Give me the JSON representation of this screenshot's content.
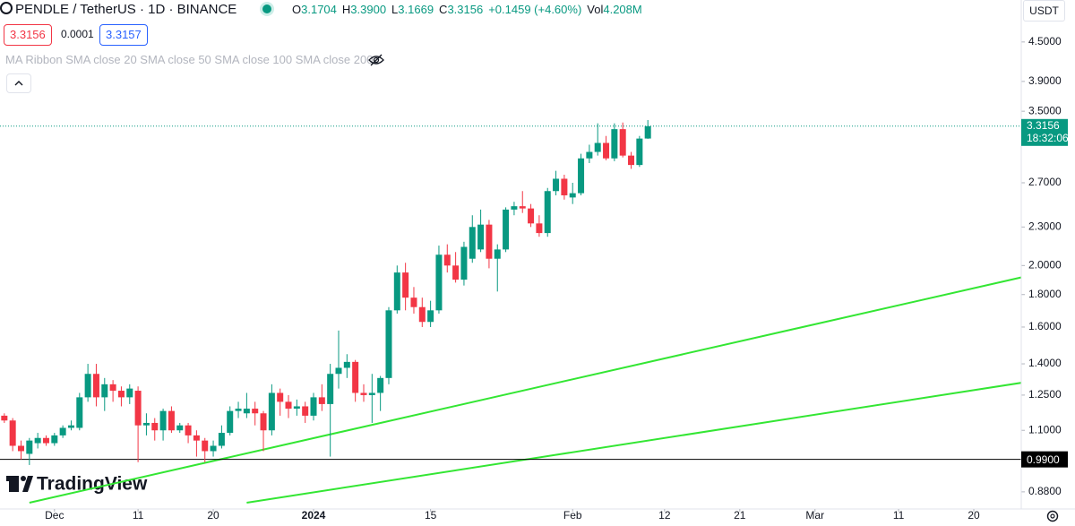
{
  "header": {
    "symbol": "PENDLE / TetherUS · 1D · BINANCE",
    "ohlc": [
      {
        "key": "O",
        "value": "3.1704"
      },
      {
        "key": "H",
        "value": "3.3900"
      },
      {
        "key": "L",
        "value": "3.1669"
      },
      {
        "key": "C",
        "value": "3.3156"
      }
    ],
    "change": "+0.1459 (+4.60%)",
    "volume_key": "Vol",
    "volume": "4.208M",
    "bid": "3.3156",
    "spread": "0.0001",
    "ask": "3.3157",
    "indicator": "MA Ribbon SMA close 20 SMA close 50 SMA close 100 SMA close 200",
    "currency": "USDT",
    "logo": "TradingView"
  },
  "chart_data": {
    "type": "candlestick",
    "log_scale": true,
    "grid": false,
    "up_color": "#089981",
    "down_color": "#f23645",
    "x": [
      "2023-11-25",
      "2023-11-26",
      "2023-11-27",
      "2023-11-28",
      "2023-11-29",
      "2023-11-30",
      "2023-12-01",
      "2023-12-02",
      "2023-12-03",
      "2023-12-04",
      "2023-12-05",
      "2023-12-06",
      "2023-12-07",
      "2023-12-08",
      "2023-12-09",
      "2023-12-10",
      "2023-12-11",
      "2023-12-12",
      "2023-12-13",
      "2023-12-14",
      "2023-12-15",
      "2023-12-16",
      "2023-12-17",
      "2023-12-18",
      "2023-12-19",
      "2023-12-20",
      "2023-12-21",
      "2023-12-22",
      "2023-12-23",
      "2023-12-24",
      "2023-12-25",
      "2023-12-26",
      "2023-12-27",
      "2023-12-28",
      "2023-12-29",
      "2023-12-30",
      "2023-12-31",
      "2024-01-01",
      "2024-01-02",
      "2024-01-03",
      "2024-01-04",
      "2024-01-05",
      "2024-01-06",
      "2024-01-07",
      "2024-01-08",
      "2024-01-09",
      "2024-01-10",
      "2024-01-11",
      "2024-01-12",
      "2024-01-13",
      "2024-01-14",
      "2024-01-15",
      "2024-01-16",
      "2024-01-17",
      "2024-01-18",
      "2024-01-19",
      "2024-01-20",
      "2024-01-21",
      "2024-01-22",
      "2024-01-23",
      "2024-01-24",
      "2024-01-25",
      "2024-01-26",
      "2024-01-27",
      "2024-01-28",
      "2024-01-29",
      "2024-01-30",
      "2024-01-31",
      "2024-02-01",
      "2024-02-02",
      "2024-02-03",
      "2024-02-04",
      "2024-02-05",
      "2024-02-06",
      "2024-02-07",
      "2024-02-08",
      "2024-02-09",
      "2024-02-10"
    ],
    "open": [
      1.16,
      1.14,
      1.04,
      1.01,
      1.05,
      1.07,
      1.05,
      1.08,
      1.11,
      1.11,
      1.24,
      1.35,
      1.24,
      1.3,
      1.27,
      1.24,
      1.27,
      1.12,
      1.13,
      1.1,
      1.18,
      1.1,
      1.12,
      1.08,
      1.06,
      1.02,
      1.04,
      1.09,
      1.18,
      1.17,
      1.19,
      1.17,
      1.1,
      1.26,
      1.22,
      1.19,
      1.2,
      1.16,
      1.24,
      1.21,
      1.35,
      1.38,
      1.41,
      1.26,
      1.25,
      1.26,
      1.33,
      1.7,
      1.95,
      1.78,
      1.72,
      1.63,
      1.7,
      2.08,
      2.0,
      1.9,
      2.05,
      2.12,
      2.32,
      2.05,
      2.12,
      2.45,
      2.48,
      2.46,
      2.33,
      2.25,
      2.62,
      2.74,
      2.56,
      2.6,
      2.95,
      3.02,
      3.12,
      2.95,
      3.28,
      2.98,
      2.88,
      3.1704
    ],
    "high": [
      1.17,
      1.15,
      1.06,
      1.07,
      1.09,
      1.08,
      1.09,
      1.12,
      1.14,
      1.26,
      1.4,
      1.4,
      1.33,
      1.32,
      1.29,
      1.3,
      1.29,
      1.17,
      1.15,
      1.19,
      1.2,
      1.13,
      1.13,
      1.1,
      1.07,
      1.06,
      1.12,
      1.2,
      1.22,
      1.26,
      1.22,
      1.18,
      1.3,
      1.28,
      1.25,
      1.23,
      1.22,
      1.26,
      1.3,
      1.4,
      1.58,
      1.45,
      1.42,
      1.3,
      1.35,
      1.34,
      1.72,
      2.0,
      2.02,
      1.85,
      1.78,
      1.76,
      2.15,
      2.16,
      2.1,
      2.18,
      2.4,
      2.45,
      2.36,
      2.16,
      2.47,
      2.52,
      2.62,
      2.5,
      2.4,
      2.65,
      2.82,
      2.78,
      2.7,
      3.0,
      3.1,
      3.35,
      3.2,
      3.35,
      3.36,
      3.02,
      3.2,
      3.39
    ],
    "low": [
      1.13,
      1.02,
      0.99,
      0.97,
      1.03,
      1.04,
      1.04,
      1.07,
      1.1,
      1.1,
      1.22,
      1.2,
      1.18,
      1.22,
      1.2,
      1.21,
      0.98,
      1.08,
      1.06,
      1.06,
      1.09,
      1.09,
      1.05,
      1.0,
      0.98,
      1.0,
      1.03,
      1.08,
      1.15,
      1.15,
      1.12,
      1.02,
      1.08,
      1.16,
      1.15,
      1.16,
      1.13,
      1.14,
      1.18,
      1.0,
      1.28,
      1.33,
      1.22,
      1.22,
      1.13,
      1.18,
      1.3,
      1.68,
      1.7,
      1.68,
      1.6,
      1.6,
      1.68,
      1.95,
      1.88,
      1.86,
      2.02,
      2.1,
      1.98,
      1.82,
      2.1,
      2.4,
      2.42,
      2.3,
      2.22,
      2.22,
      2.58,
      2.54,
      2.5,
      2.58,
      2.9,
      2.98,
      2.93,
      2.92,
      2.96,
      2.84,
      2.86,
      3.1669
    ],
    "close": [
      1.14,
      1.04,
      1.02,
      1.06,
      1.07,
      1.05,
      1.08,
      1.11,
      1.12,
      1.24,
      1.35,
      1.24,
      1.3,
      1.27,
      1.24,
      1.28,
      1.12,
      1.13,
      1.1,
      1.18,
      1.1,
      1.12,
      1.08,
      1.06,
      1.02,
      1.04,
      1.09,
      1.18,
      1.19,
      1.19,
      1.17,
      1.1,
      1.26,
      1.22,
      1.19,
      1.2,
      1.16,
      1.24,
      1.21,
      1.35,
      1.38,
      1.41,
      1.26,
      1.25,
      1.26,
      1.33,
      1.7,
      1.95,
      1.78,
      1.72,
      1.63,
      1.7,
      2.08,
      2.0,
      1.9,
      2.14,
      2.3,
      2.32,
      2.05,
      2.12,
      2.45,
      2.48,
      2.46,
      2.33,
      2.25,
      2.62,
      2.74,
      2.58,
      2.6,
      2.95,
      3.02,
      3.12,
      2.95,
      3.28,
      2.98,
      2.88,
      3.17,
      3.3156
    ],
    "xlim": [
      "2023-11-24",
      "2024-03-26"
    ],
    "xticks": [
      {
        "value": "2023-12-01",
        "label": "Dec"
      },
      {
        "value": "2023-12-11",
        "label": "11"
      },
      {
        "value": "2023-12-20",
        "label": "20"
      },
      {
        "value": "2024-01-01",
        "label": "2024"
      },
      {
        "value": "2024-01-15",
        "label": "15"
      },
      {
        "value": "2024-02-01",
        "label": "Feb"
      },
      {
        "value": "2024-02-12",
        "label": "12"
      },
      {
        "value": "2024-02-21",
        "label": "21"
      },
      {
        "value": "2024-03-01",
        "label": "Mar"
      },
      {
        "value": "2024-03-11",
        "label": "11"
      },
      {
        "value": "2024-03-20",
        "label": "20"
      }
    ],
    "ylim": [
      0.827,
      5.24
    ],
    "yticks": [
      {
        "value": 4.5,
        "label": "4.5000"
      },
      {
        "value": 3.9,
        "label": "3.9000"
      },
      {
        "value": 3.5,
        "label": "3.5000"
      },
      {
        "value": 2.7,
        "label": "2.7000"
      },
      {
        "value": 2.3,
        "label": "2.3000"
      },
      {
        "value": 2.0,
        "label": "2.0000"
      },
      {
        "value": 1.8,
        "label": "1.8000"
      },
      {
        "value": 1.6,
        "label": "1.6000"
      },
      {
        "value": 1.4,
        "label": "1.4000"
      },
      {
        "value": 1.25,
        "label": "1.2500"
      },
      {
        "value": 1.1,
        "label": "1.1000"
      },
      {
        "value": 0.88,
        "label": "0.8800"
      }
    ],
    "trendlines": [
      {
        "start": [
          "2023-11-28",
          0.846
        ],
        "end": [
          "2024-03-26",
          1.92
        ],
        "color": "#33e633"
      },
      {
        "start": [
          "2023-12-24",
          0.846
        ],
        "end": [
          "2024-03-26",
          1.309
        ],
        "color": "#33e633"
      }
    ],
    "hline": {
      "value": 0.99,
      "label": "0.9900",
      "color": "#000000"
    },
    "price_tag": {
      "value": 3.3156,
      "label": "3.3156",
      "countdown": "18:32:06",
      "color": "#089981"
    }
  }
}
